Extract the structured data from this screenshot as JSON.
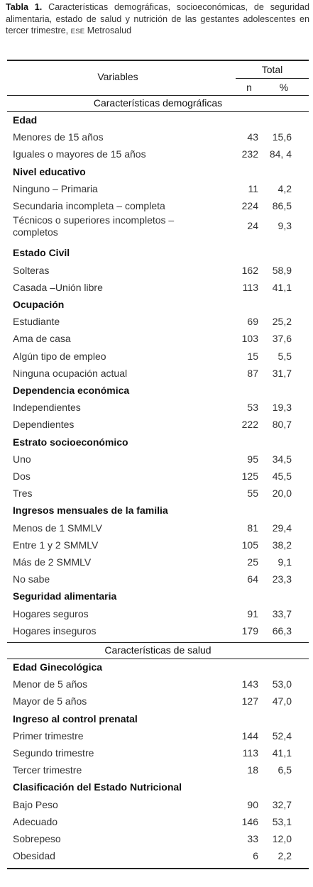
{
  "caption": {
    "label": "Tabla 1.",
    "text_1": "Características demográficas, socioeconómicas, de seguridad alimentaria, estado de salud y nutrición de las gestantes adolescentes en tercer trimestre,",
    "ese": "ESE",
    "text_2": "Metrosalud"
  },
  "header": {
    "variables": "Variables",
    "total": "Total",
    "n": "n",
    "pct": "%"
  },
  "sections": [
    {
      "title": "Características demográficas",
      "groups": [
        {
          "name": "Edad",
          "rows": [
            {
              "label": "Menores de 15 años",
              "n": "43",
              "pct": "15,6"
            },
            {
              "label": "Iguales o mayores de 15 años",
              "n": "232",
              "pct": "84, 4"
            }
          ]
        },
        {
          "name": "Nivel educativo",
          "rows": [
            {
              "label": "Ninguno – Primaria",
              "n": "11",
              "pct": "4,2"
            },
            {
              "label": "Secundaria incompleta – completa",
              "n": "224",
              "pct": "86,5"
            },
            {
              "label": "Técnicos o superiores incompletos –",
              "label2": "completos",
              "n": "24",
              "pct": "9,3"
            }
          ]
        },
        {
          "name": "Estado Civil",
          "rows": [
            {
              "label": "Solteras",
              "n": "162",
              "pct": "58,9"
            },
            {
              "label": "Casada –Unión libre",
              "n": "113",
              "pct": "41,1"
            }
          ]
        },
        {
          "name": "Ocupación",
          "rows": [
            {
              "label": "Estudiante",
              "n": "69",
              "pct": "25,2"
            },
            {
              "label": "Ama de casa",
              "n": "103",
              "pct": "37,6"
            },
            {
              "label": "Algún tipo de empleo",
              "n": "15",
              "pct": "5,5"
            },
            {
              "label": "Ninguna ocupación actual",
              "n": "87",
              "pct": "31,7"
            }
          ]
        },
        {
          "name": "Dependencia económica",
          "rows": [
            {
              "label": "Independientes",
              "n": "53",
              "pct": "19,3"
            },
            {
              "label": "Dependientes",
              "n": "222",
              "pct": "80,7"
            }
          ]
        },
        {
          "name": "Estrato socioeconómico",
          "rows": [
            {
              "label": "Uno",
              "n": "95",
              "pct": "34,5"
            },
            {
              "label": "Dos",
              "n": "125",
              "pct": "45,5"
            },
            {
              "label": "Tres",
              "n": "55",
              "pct": "20,0"
            }
          ]
        },
        {
          "name": "Ingresos mensuales de la familia",
          "rows": [
            {
              "label": "Menos de 1 SMMLV",
              "n": "81",
              "pct": "29,4"
            },
            {
              "label": "Entre 1 y 2 SMMLV",
              "n": "105",
              "pct": "38,2"
            },
            {
              "label": "Más de 2 SMMLV",
              "n": "25",
              "pct": "9,1"
            },
            {
              "label": "No sabe",
              "n": "64",
              "pct": "23,3"
            }
          ]
        },
        {
          "name": "Seguridad alimentaria",
          "rows": [
            {
              "label": "Hogares seguros",
              "n": "91",
              "pct": "33,7"
            },
            {
              "label": "Hogares inseguros",
              "n": "179",
              "pct": "66,3"
            }
          ]
        }
      ]
    },
    {
      "title": "Características de salud",
      "groups": [
        {
          "name": "Edad Ginecológica",
          "rows": [
            {
              "label": "Menor de 5 años",
              "n": "143",
              "pct": "53,0"
            },
            {
              "label": "Mayor de 5 años",
              "n": "127",
              "pct": "47,0"
            }
          ]
        },
        {
          "name": "Ingreso al control prenatal",
          "rows": [
            {
              "label": "Primer trimestre",
              "n": "144",
              "pct": "52,4"
            },
            {
              "label": "Segundo trimestre",
              "n": "113",
              "pct": "41,1"
            },
            {
              "label": "Tercer trimestre",
              "n": "18",
              "pct": "6,5"
            }
          ]
        },
        {
          "name": "Clasificación del Estado Nutricional",
          "rows": [
            {
              "label": "Bajo Peso",
              "n": "90",
              "pct": "32,7"
            },
            {
              "label": "Adecuado",
              "n": "146",
              "pct": "53,1"
            },
            {
              "label": "Sobrepeso",
              "n": "33",
              "pct": "12,0"
            },
            {
              "label": "Obesidad",
              "n": "6",
              "pct": "2,2"
            }
          ]
        }
      ]
    }
  ]
}
